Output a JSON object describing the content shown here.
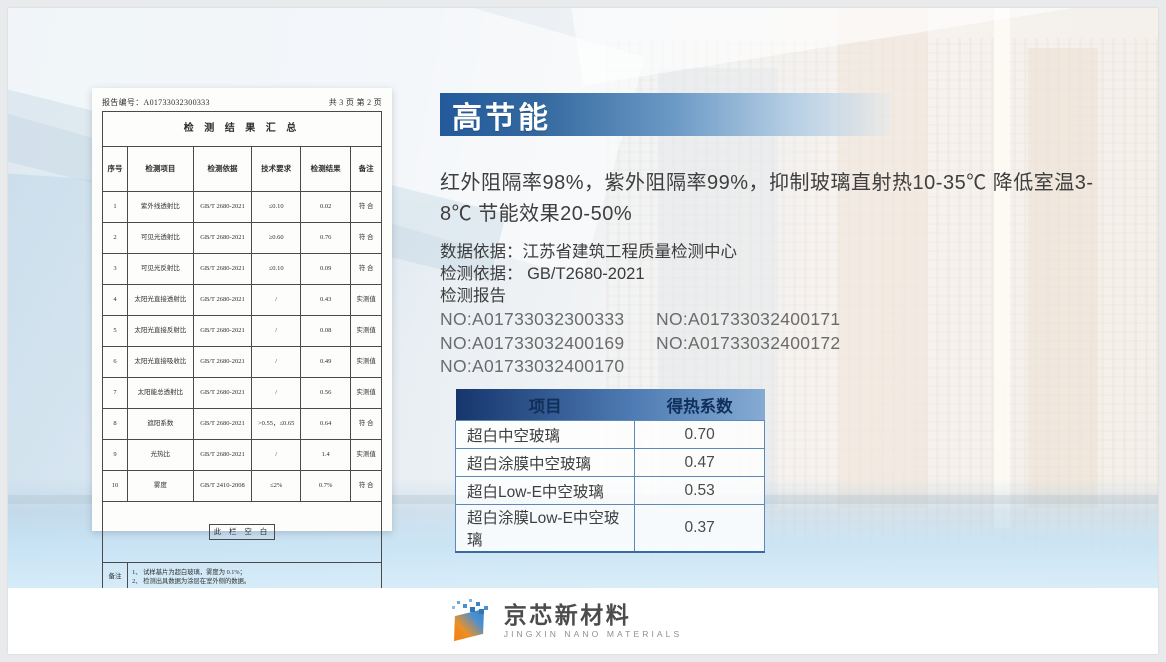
{
  "slide": {
    "title": "高节能",
    "intro": "红外阻隔率98%，紫外阻隔率99%，抑制玻璃直射热10-35℃ 降低室温3-8℃ 节能效果20-50%",
    "meta": {
      "data_basis": "数据依据：江苏省建筑工程质量检测中心",
      "test_basis": "检测依据： GB/T2680-2021",
      "report_label": "检测报告",
      "report_numbers": [
        "NO:A01733032300333",
        "NO:A01733032400171",
        "NO:A01733032400169",
        "NO:A01733032400172",
        "NO:A01733032400170"
      ]
    },
    "heat_table": {
      "headers": [
        "项目",
        "得热系数"
      ],
      "rows": [
        [
          "超白中空玻璃",
          "0.70"
        ],
        [
          "超白涂膜中空玻璃",
          "0.47"
        ],
        [
          "超白Low-E中空玻璃",
          "0.53"
        ],
        [
          "超白涂膜Low-E中空玻璃",
          "0.37"
        ]
      ]
    }
  },
  "report": {
    "report_no": "报告编号：A01733032300333",
    "page_label": "共 3 页 第 2 页",
    "title": "检 测 结 果 汇 总",
    "headers": [
      "序号",
      "检测项目",
      "检测依据",
      "技术要求",
      "检测结果",
      "备注"
    ],
    "rows": [
      [
        "1",
        "紫外线透射比",
        "GB/T 2680-2021",
        "≤0.10",
        "0.02",
        "符 合"
      ],
      [
        "2",
        "可见光透射比",
        "GB/T 2680-2021",
        "≥0.60",
        "0.76",
        "符 合"
      ],
      [
        "3",
        "可见光反射比",
        "GB/T 2680-2021",
        "≤0.10",
        "0.09",
        "符 合"
      ],
      [
        "4",
        "太阳光直接透射比",
        "GB/T 2680-2021",
        "/",
        "0.43",
        "实测值"
      ],
      [
        "5",
        "太阳光直接反射比",
        "GB/T 2680-2021",
        "/",
        "0.08",
        "实测值"
      ],
      [
        "6",
        "太阳光直接吸收比",
        "GB/T 2680-2021",
        "/",
        "0.49",
        "实测值"
      ],
      [
        "7",
        "太阳能总透射比",
        "GB/T 2680-2021",
        "/",
        "0.56",
        "实测值"
      ],
      [
        "8",
        "遮阳系数",
        "GB/T 2680-2021",
        ">0.55，≤0.65",
        "0.64",
        "符 合"
      ],
      [
        "9",
        "光热比",
        "GB/T 2680-2021",
        "/",
        "1.4",
        "实测值"
      ],
      [
        "10",
        "雾度",
        "GB/T 2410-2008",
        "≤2%",
        "0.7%",
        "符 合"
      ]
    ],
    "blank_label": "此 栏 空 白",
    "note_label": "备注",
    "notes": [
      "1、 试样基片为超白玻璃，雾度为 0.1%；",
      "2、 检测出具数据为涂层在室外侧的数据。"
    ]
  },
  "footer": {
    "logo_text": "京芯新材料",
    "logo_subtext": "JINGXIN NANO MATERIALS"
  },
  "colors": {
    "title_bar_left": "#235a9c",
    "title_bar_right": "#dceaf4",
    "table_header_dark": "#16356d",
    "table_header_light": "#85abd3",
    "table_border": "#5b89ba",
    "logo_blue": "#3c85c6",
    "logo_orange": "#f08519"
  }
}
